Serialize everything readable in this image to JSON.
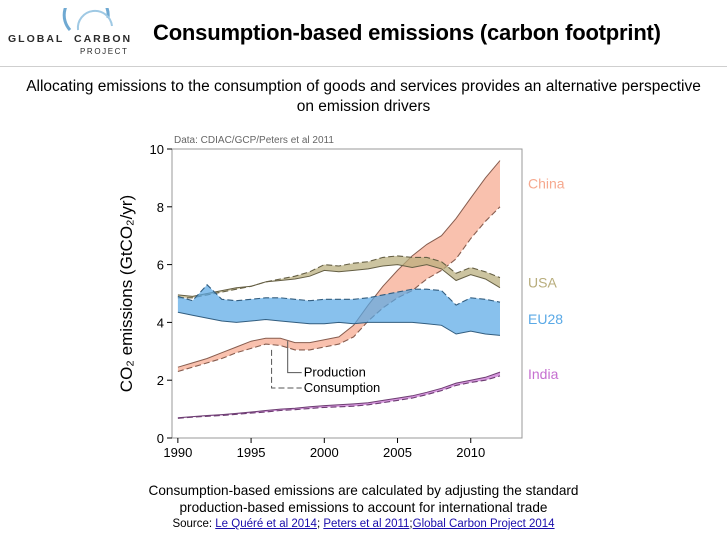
{
  "header": {
    "logo_top": "GLOBAL",
    "logo_right": "CARBON",
    "logo_bottom": "PROJECT",
    "title": "Consumption-based emissions (carbon footprint)"
  },
  "subtitle_line1": "Allocating emissions to the consumption of goods and services provides an alternative perspective",
  "subtitle_line2": "on emission drivers",
  "caption_line1": "Consumption-based emissions are calculated by adjusting the standard",
  "caption_line2": "production-based emissions to account for international trade",
  "source": {
    "prefix": "Source: ",
    "link1": "Le Quéré et al 2014",
    "sep1": "; ",
    "link2": "Peters et al 2011",
    "sep2": ";",
    "link3": "Global Carbon Project 2014"
  },
  "colors": {
    "china": "#f6a98f",
    "usa": "#b8ad7c",
    "eu28": "#5aa9e6",
    "india": "#c66fd0"
  },
  "chart_data": {
    "type": "area",
    "title": "Data: CDIAC/GCP/Peters et al 2011",
    "ylabel": "CO₂ emissions (GtCO₂/yr)",
    "xlim": [
      1990,
      2012
    ],
    "ylim": [
      0,
      10
    ],
    "xticks": [
      1990,
      1995,
      2000,
      2005,
      2010
    ],
    "yticks": [
      0,
      2,
      4,
      6,
      8,
      10
    ],
    "legend": {
      "production": "Production",
      "consumption": "Consumption"
    },
    "x": [
      1990,
      1991,
      1992,
      1993,
      1994,
      1995,
      1996,
      1997,
      1998,
      1999,
      2000,
      2001,
      2002,
      2003,
      2004,
      2005,
      2006,
      2007,
      2008,
      2009,
      2010,
      2011,
      2012
    ],
    "series": [
      {
        "name": "China",
        "color": "#f6a98f",
        "production": [
          2.45,
          2.6,
          2.75,
          2.95,
          3.15,
          3.35,
          3.45,
          3.45,
          3.3,
          3.3,
          3.4,
          3.5,
          3.9,
          4.6,
          5.25,
          5.8,
          6.3,
          6.7,
          7.0,
          7.6,
          8.3,
          9.0,
          9.6
        ],
        "consumption": [
          2.3,
          2.45,
          2.6,
          2.75,
          2.95,
          3.1,
          3.25,
          3.2,
          3.05,
          3.05,
          3.15,
          3.25,
          3.5,
          4.05,
          4.5,
          4.85,
          5.1,
          5.5,
          5.8,
          6.2,
          6.9,
          7.5,
          8.0
        ]
      },
      {
        "name": "USA",
        "color": "#b8ad7c",
        "production": [
          4.95,
          4.9,
          5.0,
          5.1,
          5.2,
          5.25,
          5.4,
          5.45,
          5.5,
          5.6,
          5.8,
          5.75,
          5.8,
          5.85,
          5.95,
          6.0,
          5.9,
          6.0,
          5.85,
          5.45,
          5.65,
          5.5,
          5.2
        ],
        "consumption": [
          4.85,
          4.85,
          4.95,
          5.05,
          5.15,
          5.25,
          5.4,
          5.5,
          5.6,
          5.75,
          6.0,
          5.95,
          6.05,
          6.1,
          6.25,
          6.3,
          6.25,
          6.25,
          6.1,
          5.7,
          5.9,
          5.75,
          5.55
        ]
      },
      {
        "name": "EU28",
        "color": "#5aa9e6",
        "production": [
          4.35,
          4.25,
          4.15,
          4.05,
          4.0,
          4.05,
          4.1,
          4.05,
          4.0,
          3.95,
          3.95,
          4.0,
          3.95,
          4.0,
          4.0,
          4.0,
          4.0,
          3.95,
          3.9,
          3.6,
          3.7,
          3.6,
          3.55
        ],
        "consumption": [
          4.9,
          4.75,
          5.3,
          4.8,
          4.75,
          4.8,
          4.85,
          4.85,
          4.8,
          4.75,
          4.8,
          4.8,
          4.8,
          4.85,
          4.95,
          5.05,
          5.15,
          5.15,
          5.1,
          4.6,
          4.85,
          4.8,
          4.7
        ]
      },
      {
        "name": "India",
        "color": "#c66fd0",
        "production": [
          0.7,
          0.74,
          0.78,
          0.81,
          0.85,
          0.9,
          0.95,
          1.0,
          1.03,
          1.08,
          1.12,
          1.15,
          1.18,
          1.22,
          1.3,
          1.38,
          1.46,
          1.58,
          1.72,
          1.9,
          2.0,
          2.1,
          2.28
        ],
        "consumption": [
          0.68,
          0.72,
          0.75,
          0.78,
          0.82,
          0.86,
          0.9,
          0.95,
          0.98,
          1.02,
          1.06,
          1.08,
          1.1,
          1.15,
          1.22,
          1.3,
          1.38,
          1.5,
          1.64,
          1.82,
          1.92,
          2.0,
          2.15
        ]
      }
    ]
  }
}
